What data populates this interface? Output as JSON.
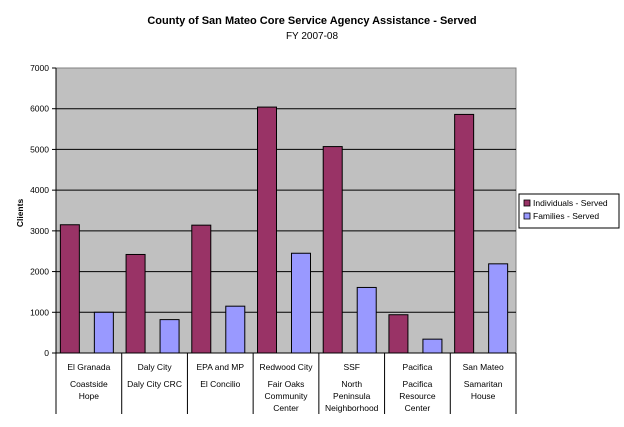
{
  "chart_data": {
    "type": "bar",
    "title": "County of San Mateo Core Service Agency Assistance - Served",
    "subtitle": "FY 2007-08",
    "ylabel": "Clients",
    "xlabel": "",
    "ylim": [
      0,
      7000
    ],
    "yticks": [
      0,
      1000,
      2000,
      3000,
      4000,
      5000,
      6000,
      7000
    ],
    "grid": true,
    "legend_position": "right",
    "categories": [
      {
        "city": "El Granada",
        "agency": [
          "Coastside",
          "Hope"
        ]
      },
      {
        "city": "Daly City",
        "agency": [
          "Daly City CRC"
        ]
      },
      {
        "city": "EPA and MP",
        "agency": [
          "El Concilio"
        ]
      },
      {
        "city": "Redwood City",
        "agency": [
          "Fair Oaks",
          "Community",
          "Center"
        ]
      },
      {
        "city": "SSF",
        "agency": [
          "North",
          "Peninsula",
          "Neighborhood"
        ]
      },
      {
        "city": "Pacifica",
        "agency": [
          "Pacifica",
          "Resource",
          "Center"
        ]
      },
      {
        "city": "San Mateo",
        "agency": [
          "Samaritan",
          "House"
        ]
      }
    ],
    "series": [
      {
        "name": "Individuals - Served",
        "color": "#993366",
        "values": [
          3150,
          2420,
          3140,
          6040,
          5070,
          940,
          5860
        ]
      },
      {
        "name": "Families - Served",
        "color": "#9999ff",
        "values": [
          1000,
          820,
          1150,
          2450,
          1610,
          340,
          2190
        ]
      }
    ],
    "plot_background": "#c0c0c0"
  }
}
